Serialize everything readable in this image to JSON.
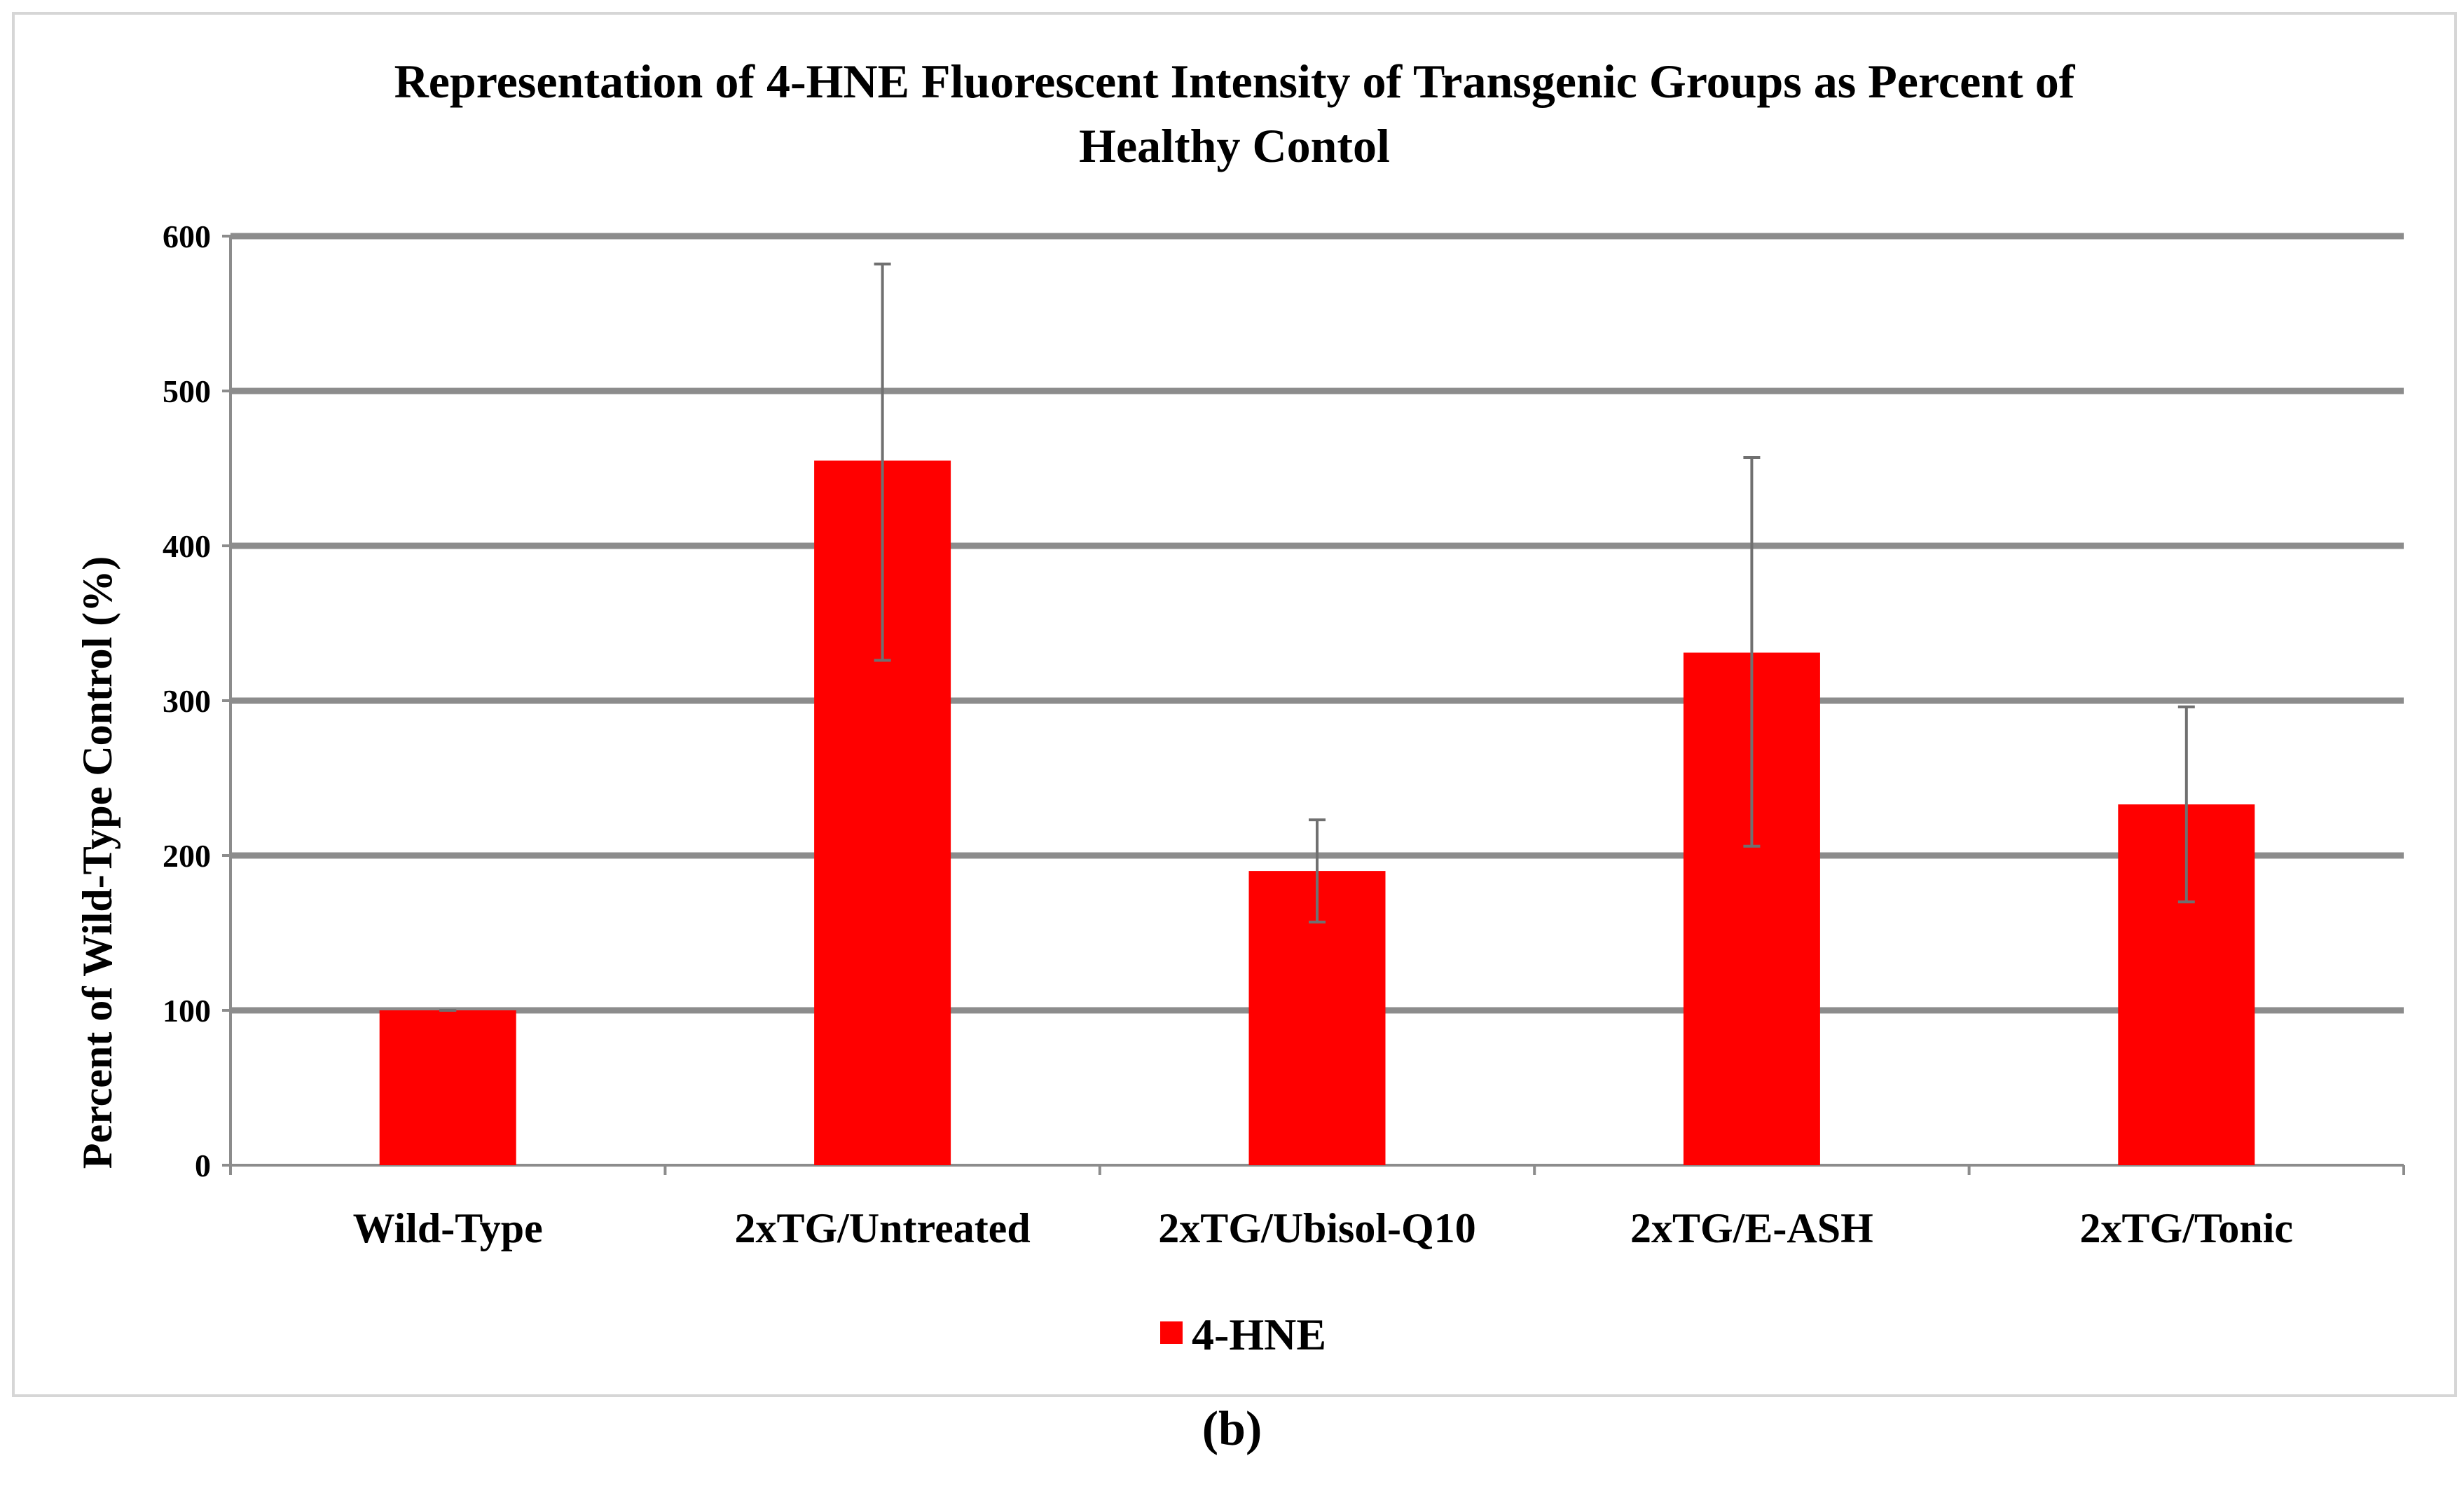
{
  "panel_label": "(b)",
  "chart_data": {
    "type": "bar",
    "title_lines": [
      "Representation of 4-HNE Fluorescent Intensity of Transgenic Groups as Percent of",
      "Healthy Contol"
    ],
    "xlabel": "",
    "ylabel": "Percent of Wild-Type Control (%)",
    "ylim": [
      0,
      600
    ],
    "yticks": [
      0,
      100,
      200,
      300,
      400,
      500,
      600
    ],
    "categories": [
      "Wild-Type",
      "2xTG/Untreated",
      "2xTG/Ubisol-Q10",
      "2xTG/E-ASH",
      "2xTG/Tonic"
    ],
    "series": [
      {
        "name": "4-HNE",
        "color": "#ff0000",
        "values": [
          100,
          455,
          190,
          331,
          233
        ],
        "error_bars": [
          [
            100,
            100
          ],
          [
            326,
            582
          ],
          [
            157,
            223
          ],
          [
            206,
            457
          ],
          [
            170,
            296
          ]
        ]
      }
    ],
    "grid": true,
    "legend_position": "bottom"
  }
}
